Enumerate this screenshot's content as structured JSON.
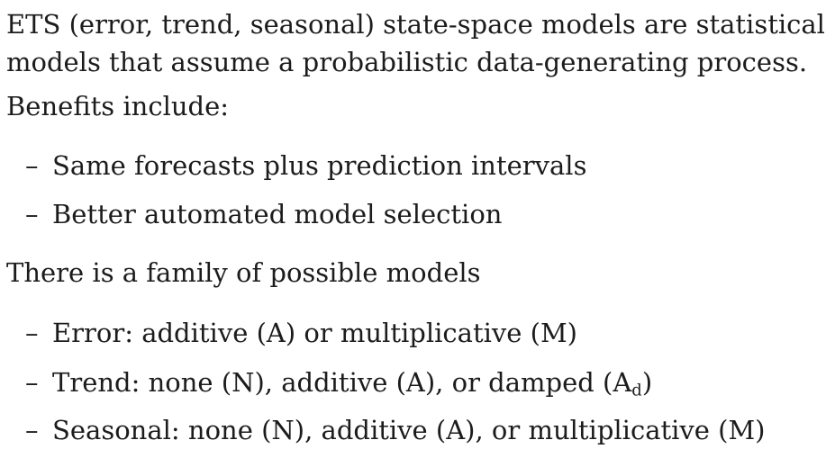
{
  "intro": {
    "line1": "ETS (error, trend, seasonal) state-space models are statistical",
    "line2": "models that assume a probabilistic data-generating process.",
    "line3": "Benefits include:"
  },
  "benefits": {
    "dash": "–",
    "item1": "Same forecasts plus prediction intervals",
    "item2": "Better automated model selection"
  },
  "family": {
    "heading": "There is a family of possible models",
    "error": "Error: additive (A) or multiplicative (M)",
    "trend_prefix": "Trend: none (N), additive (A), or damped (A",
    "trend_sub": "d",
    "trend_suffix": ")",
    "seasonal": "Seasonal: none (N), additive (A), or multiplicative (M)"
  }
}
